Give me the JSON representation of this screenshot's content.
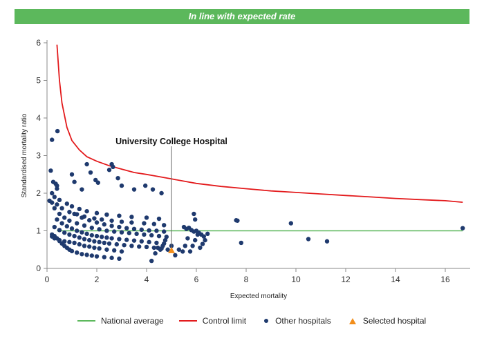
{
  "banner": {
    "text": "In line with expected rate"
  },
  "colors": {
    "banner": "#5cb85c",
    "national": "#5cb85c",
    "control": "#e31a1c",
    "other": "#1f3a6e",
    "selected": "#f28e1c"
  },
  "chart_data": {
    "type": "scatter",
    "xlabel": "Expected mortality",
    "ylabel": "Standardised mortality ratio",
    "xlim": [
      0,
      17
    ],
    "ylim": [
      0,
      6
    ],
    "xticks": [
      0,
      2,
      4,
      6,
      8,
      10,
      12,
      14,
      16
    ],
    "yticks": [
      0,
      1,
      2,
      3,
      4,
      5,
      6
    ],
    "grid": false,
    "legend_position": "bottom",
    "annotation": {
      "text": "University College Hospital",
      "x": 5.0,
      "y": 0.48
    },
    "series": [
      {
        "name": "National average",
        "kind": "line",
        "x": [
          0.4,
          16.7
        ],
        "y": [
          1,
          1
        ]
      },
      {
        "name": "Control limit",
        "kind": "line",
        "x": [
          0.4,
          0.5,
          0.6,
          0.8,
          1.0,
          1.3,
          1.6,
          2.0,
          2.5,
          3.0,
          3.5,
          4.0,
          4.5,
          5.0,
          6.0,
          7.0,
          8.0,
          9.0,
          10.0,
          11.0,
          12.0,
          13.0,
          14.0,
          15.0,
          16.0,
          16.7
        ],
        "y": [
          5.95,
          5.0,
          4.4,
          3.75,
          3.4,
          3.15,
          2.97,
          2.85,
          2.73,
          2.64,
          2.55,
          2.5,
          2.44,
          2.38,
          2.26,
          2.18,
          2.12,
          2.06,
          2.02,
          1.98,
          1.94,
          1.9,
          1.86,
          1.83,
          1.8,
          1.76
        ]
      },
      {
        "name": "Other hospitals",
        "kind": "points",
        "x": [
          0.2,
          0.3,
          0.4,
          0.5,
          0.6,
          0.7,
          0.8,
          0.9,
          1.0,
          1.2,
          1.4,
          1.6,
          1.8,
          2.0,
          2.3,
          2.6,
          2.9,
          0.2,
          0.3,
          0.5,
          0.7,
          0.9,
          1.1,
          1.3,
          1.5,
          1.7,
          1.9,
          2.1,
          2.4,
          2.7,
          3.0,
          0.3,
          0.5,
          0.7,
          0.9,
          1.1,
          1.3,
          1.5,
          1.7,
          1.9,
          2.1,
          2.3,
          2.5,
          2.8,
          3.1,
          3.4,
          3.7,
          4.0,
          4.3,
          4.6,
          0.4,
          0.6,
          0.8,
          1.0,
          1.2,
          1.4,
          1.6,
          1.8,
          2.0,
          2.2,
          2.4,
          2.6,
          2.9,
          3.2,
          3.5,
          3.8,
          4.1,
          4.4,
          4.7,
          0.3,
          0.5,
          0.7,
          0.9,
          1.2,
          1.5,
          1.8,
          2.1,
          2.4,
          2.7,
          3.0,
          3.3,
          3.6,
          3.9,
          4.2,
          4.5,
          4.8,
          1.1,
          1.4,
          1.7,
          2.0,
          2.3,
          2.6,
          2.9,
          3.2,
          3.5,
          3.8,
          4.1,
          4.4,
          4.7,
          0.1,
          0.2,
          0.4,
          0.6,
          0.9,
          1.2,
          1.5,
          1.9,
          2.2,
          2.6,
          3.0,
          3.4,
          3.9,
          4.3,
          4.7,
          0.2,
          0.3,
          0.5,
          0.8,
          1.0,
          1.3,
          1.6,
          2.0,
          2.4,
          2.9,
          3.4,
          4.0,
          4.5,
          0.15,
          0.4,
          1.0,
          1.1,
          1.4,
          1.6,
          1.75,
          1.95,
          2.05,
          2.5,
          2.6,
          2.65,
          2.85,
          3.0,
          3.5,
          3.95,
          4.25,
          4.6,
          0.2,
          0.25,
          0.4,
          0.35,
          4.2,
          4.35,
          4.45,
          4.55,
          4.65,
          4.75,
          4.85,
          5.0,
          5.15,
          5.3,
          5.45,
          5.55,
          5.65,
          5.75,
          5.85,
          5.95,
          6.05,
          6.15,
          6.25,
          6.35,
          6.45,
          5.5,
          5.6,
          5.7,
          5.8,
          5.9,
          6.0,
          6.1,
          6.2,
          6.3,
          5.9,
          5.95,
          7.6,
          7.65,
          7.8,
          9.8,
          10.5,
          11.25,
          16.7
        ],
        "y": [
          0.9,
          0.86,
          0.8,
          0.73,
          0.66,
          0.6,
          0.55,
          0.5,
          0.46,
          0.42,
          0.38,
          0.36,
          0.34,
          0.32,
          0.3,
          0.28,
          0.26,
          0.85,
          0.8,
          0.75,
          0.72,
          0.7,
          0.68,
          0.64,
          0.6,
          0.58,
          0.55,
          0.53,
          0.5,
          0.48,
          0.45,
          1.1,
          1.02,
          0.95,
          0.9,
          0.86,
          0.82,
          0.78,
          0.75,
          0.72,
          0.7,
          0.68,
          0.66,
          0.64,
          0.62,
          0.6,
          0.58,
          0.57,
          0.55,
          0.53,
          1.3,
          1.2,
          1.12,
          1.06,
          1.0,
          0.96,
          0.92,
          0.88,
          0.86,
          0.84,
          0.82,
          0.8,
          0.78,
          0.76,
          0.74,
          0.72,
          0.7,
          0.68,
          0.66,
          1.6,
          1.45,
          1.35,
          1.27,
          1.2,
          1.14,
          1.08,
          1.04,
          1.0,
          0.98,
          0.96,
          0.94,
          0.92,
          0.9,
          0.88,
          0.86,
          0.84,
          1.45,
          1.35,
          1.28,
          1.22,
          1.17,
          1.13,
          1.1,
          1.07,
          1.05,
          1.03,
          1.01,
          1.0,
          0.98,
          1.8,
          1.75,
          1.7,
          1.6,
          1.5,
          1.44,
          1.38,
          1.33,
          1.3,
          1.27,
          1.24,
          1.22,
          1.2,
          1.18,
          1.15,
          2.0,
          1.9,
          1.82,
          1.72,
          1.65,
          1.58,
          1.52,
          1.47,
          1.43,
          1.4,
          1.37,
          1.35,
          1.32,
          2.6,
          2.2,
          2.5,
          2.3,
          2.1,
          2.77,
          2.55,
          2.35,
          2.28,
          2.62,
          2.77,
          2.7,
          2.4,
          2.2,
          2.1,
          2.2,
          2.1,
          2.0,
          3.42,
          2.3,
          2.12,
          2.25,
          0.2,
          0.4,
          0.55,
          0.5,
          0.6,
          0.75,
          0.5,
          0.6,
          0.35,
          0.5,
          0.45,
          0.6,
          0.8,
          0.45,
          0.6,
          0.75,
          0.9,
          0.55,
          0.65,
          0.75,
          0.92,
          1.1,
          1.05,
          1.08,
          1.02,
          0.98,
          1.0,
          0.95,
          0.9,
          0.85,
          1.45,
          1.3,
          1.28,
          1.27,
          0.68,
          1.2,
          0.78,
          0.72,
          1.07
        ]
      },
      {
        "name": "Selected hospital",
        "kind": "points",
        "x": [
          5.0
        ],
        "y": [
          0.48
        ]
      }
    ],
    "extra_points": {
      "x": [
        0.42
      ],
      "y": [
        3.65
      ]
    }
  }
}
